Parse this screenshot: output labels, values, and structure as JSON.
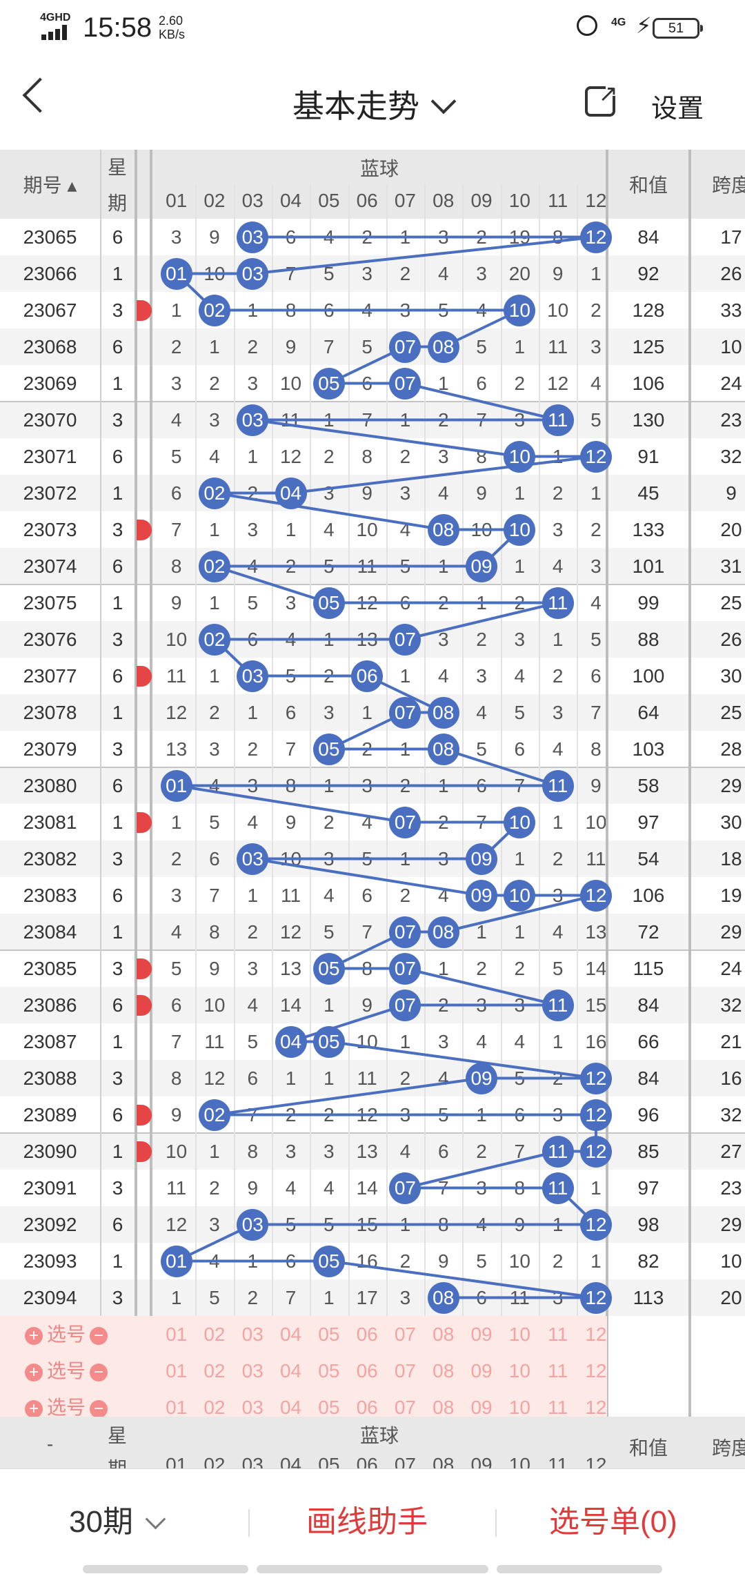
{
  "status": {
    "network": "4GHD",
    "time": "15:58",
    "speed_value": "2.60",
    "speed_unit": "KB/s",
    "net_right": "4G",
    "battery": "51"
  },
  "titlebar": {
    "title": "基本走势",
    "settings": "设置"
  },
  "table": {
    "col_period": "期号",
    "col_week_1": "星",
    "col_week_2": "期",
    "blue_label": "蓝球",
    "blue_cols": [
      "01",
      "02",
      "03",
      "04",
      "05",
      "06",
      "07",
      "08",
      "09",
      "10",
      "11",
      "12"
    ],
    "col_sum": "和值",
    "col_span": "跨度",
    "rows": [
      {
        "period": "23065",
        "week": "6",
        "vals": [
          "3",
          "9",
          "03",
          "6",
          "4",
          "2",
          "1",
          "3",
          "2",
          "19",
          "8",
          "12"
        ],
        "sum": "84",
        "span": "17"
      },
      {
        "period": "23066",
        "week": "1",
        "vals": [
          "01",
          "10",
          "03",
          "7",
          "5",
          "3",
          "2",
          "4",
          "3",
          "20",
          "9",
          "1"
        ],
        "sum": "92",
        "span": "26"
      },
      {
        "period": "23067",
        "week": "3",
        "vals": [
          "1",
          "02",
          "1",
          "8",
          "6",
          "4",
          "3",
          "5",
          "4",
          "10",
          "10",
          "2"
        ],
        "sum": "128",
        "span": "33"
      },
      {
        "period": "23068",
        "week": "6",
        "vals": [
          "2",
          "1",
          "2",
          "9",
          "7",
          "5",
          "07",
          "08",
          "5",
          "1",
          "11",
          "3"
        ],
        "sum": "125",
        "span": "10"
      },
      {
        "period": "23069",
        "week": "1",
        "vals": [
          "3",
          "2",
          "3",
          "10",
          "05",
          "6",
          "07",
          "1",
          "6",
          "2",
          "12",
          "4"
        ],
        "sum": "106",
        "span": "24"
      },
      {
        "period": "23070",
        "week": "3",
        "vals": [
          "4",
          "3",
          "03",
          "11",
          "1",
          "7",
          "1",
          "2",
          "7",
          "3",
          "11",
          "5"
        ],
        "sum": "130",
        "span": "23"
      },
      {
        "period": "23071",
        "week": "6",
        "vals": [
          "5",
          "4",
          "1",
          "12",
          "2",
          "8",
          "2",
          "3",
          "8",
          "10",
          "1",
          "12"
        ],
        "sum": "91",
        "span": "32"
      },
      {
        "period": "23072",
        "week": "1",
        "vals": [
          "6",
          "02",
          "2",
          "04",
          "3",
          "9",
          "3",
          "4",
          "9",
          "1",
          "2",
          "1"
        ],
        "sum": "45",
        "span": "9"
      },
      {
        "period": "23073",
        "week": "3",
        "vals": [
          "7",
          "1",
          "3",
          "1",
          "4",
          "10",
          "4",
          "08",
          "10",
          "10",
          "3",
          "2"
        ],
        "sum": "133",
        "span": "20"
      },
      {
        "period": "23074",
        "week": "6",
        "vals": [
          "8",
          "02",
          "4",
          "2",
          "5",
          "11",
          "5",
          "1",
          "09",
          "1",
          "4",
          "3"
        ],
        "sum": "101",
        "span": "31"
      },
      {
        "period": "23075",
        "week": "1",
        "vals": [
          "9",
          "1",
          "5",
          "3",
          "05",
          "12",
          "6",
          "2",
          "1",
          "2",
          "11",
          "4"
        ],
        "sum": "99",
        "span": "25"
      },
      {
        "period": "23076",
        "week": "3",
        "vals": [
          "10",
          "02",
          "6",
          "4",
          "1",
          "13",
          "07",
          "3",
          "2",
          "3",
          "1",
          "5"
        ],
        "sum": "88",
        "span": "26"
      },
      {
        "period": "23077",
        "week": "6",
        "vals": [
          "11",
          "1",
          "03",
          "5",
          "2",
          "06",
          "1",
          "4",
          "3",
          "4",
          "2",
          "6"
        ],
        "sum": "100",
        "span": "30"
      },
      {
        "period": "23078",
        "week": "1",
        "vals": [
          "12",
          "2",
          "1",
          "6",
          "3",
          "1",
          "07",
          "08",
          "4",
          "5",
          "3",
          "7"
        ],
        "sum": "64",
        "span": "25"
      },
      {
        "period": "23079",
        "week": "3",
        "vals": [
          "13",
          "3",
          "2",
          "7",
          "05",
          "2",
          "1",
          "08",
          "5",
          "6",
          "4",
          "8"
        ],
        "sum": "103",
        "span": "28"
      },
      {
        "period": "23080",
        "week": "6",
        "vals": [
          "01",
          "4",
          "3",
          "8",
          "1",
          "3",
          "2",
          "1",
          "6",
          "7",
          "11",
          "9"
        ],
        "sum": "58",
        "span": "29"
      },
      {
        "period": "23081",
        "week": "1",
        "vals": [
          "1",
          "5",
          "4",
          "9",
          "2",
          "4",
          "07",
          "2",
          "7",
          "10",
          "1",
          "10"
        ],
        "sum": "97",
        "span": "30"
      },
      {
        "period": "23082",
        "week": "3",
        "vals": [
          "2",
          "6",
          "03",
          "10",
          "3",
          "5",
          "1",
          "3",
          "09",
          "1",
          "2",
          "11"
        ],
        "sum": "54",
        "span": "18"
      },
      {
        "period": "23083",
        "week": "6",
        "vals": [
          "3",
          "7",
          "1",
          "11",
          "4",
          "6",
          "2",
          "4",
          "09",
          "10",
          "3",
          "12"
        ],
        "sum": "106",
        "span": "19"
      },
      {
        "period": "23084",
        "week": "1",
        "vals": [
          "4",
          "8",
          "2",
          "12",
          "5",
          "7",
          "07",
          "08",
          "1",
          "1",
          "4",
          "13"
        ],
        "sum": "72",
        "span": "29"
      },
      {
        "period": "23085",
        "week": "3",
        "vals": [
          "5",
          "9",
          "3",
          "13",
          "05",
          "8",
          "07",
          "1",
          "2",
          "2",
          "5",
          "14"
        ],
        "sum": "115",
        "span": "24"
      },
      {
        "period": "23086",
        "week": "6",
        "vals": [
          "6",
          "10",
          "4",
          "14",
          "1",
          "9",
          "07",
          "2",
          "3",
          "3",
          "11",
          "15"
        ],
        "sum": "84",
        "span": "32"
      },
      {
        "period": "23087",
        "week": "1",
        "vals": [
          "7",
          "11",
          "5",
          "04",
          "05",
          "10",
          "1",
          "3",
          "4",
          "4",
          "1",
          "16"
        ],
        "sum": "66",
        "span": "21"
      },
      {
        "period": "23088",
        "week": "3",
        "vals": [
          "8",
          "12",
          "6",
          "1",
          "1",
          "11",
          "2",
          "4",
          "09",
          "5",
          "2",
          "12"
        ],
        "sum": "84",
        "span": "16"
      },
      {
        "period": "23089",
        "week": "6",
        "vals": [
          "9",
          "02",
          "7",
          "2",
          "2",
          "12",
          "3",
          "5",
          "1",
          "6",
          "3",
          "12"
        ],
        "sum": "96",
        "span": "32"
      },
      {
        "period": "23090",
        "week": "1",
        "vals": [
          "10",
          "1",
          "8",
          "3",
          "3",
          "13",
          "4",
          "6",
          "2",
          "7",
          "11",
          "12"
        ],
        "sum": "85",
        "span": "27"
      },
      {
        "period": "23091",
        "week": "3",
        "vals": [
          "11",
          "2",
          "9",
          "4",
          "4",
          "14",
          "07",
          "7",
          "3",
          "8",
          "11",
          "1"
        ],
        "sum": "97",
        "span": "23"
      },
      {
        "period": "23092",
        "week": "6",
        "vals": [
          "12",
          "3",
          "03",
          "5",
          "5",
          "15",
          "1",
          "8",
          "4",
          "9",
          "1",
          "12"
        ],
        "sum": "98",
        "span": "29"
      },
      {
        "period": "23093",
        "week": "1",
        "vals": [
          "01",
          "4",
          "1",
          "6",
          "05",
          "16",
          "2",
          "9",
          "5",
          "10",
          "2",
          "1"
        ],
        "sum": "82",
        "span": "10"
      },
      {
        "period": "23094",
        "week": "3",
        "vals": [
          "1",
          "5",
          "2",
          "7",
          "1",
          "17",
          "3",
          "08",
          "6",
          "11",
          "3",
          "12"
        ],
        "sum": "113",
        "span": "20"
      }
    ],
    "select_label": "选号",
    "bottom_period": "-"
  },
  "bottom": {
    "periods": "30期",
    "draw_helper": "画线助手",
    "selection": "选号单(0)"
  },
  "colors": {
    "ball": "#4a6fc1",
    "accent_red": "#e03a3a"
  }
}
